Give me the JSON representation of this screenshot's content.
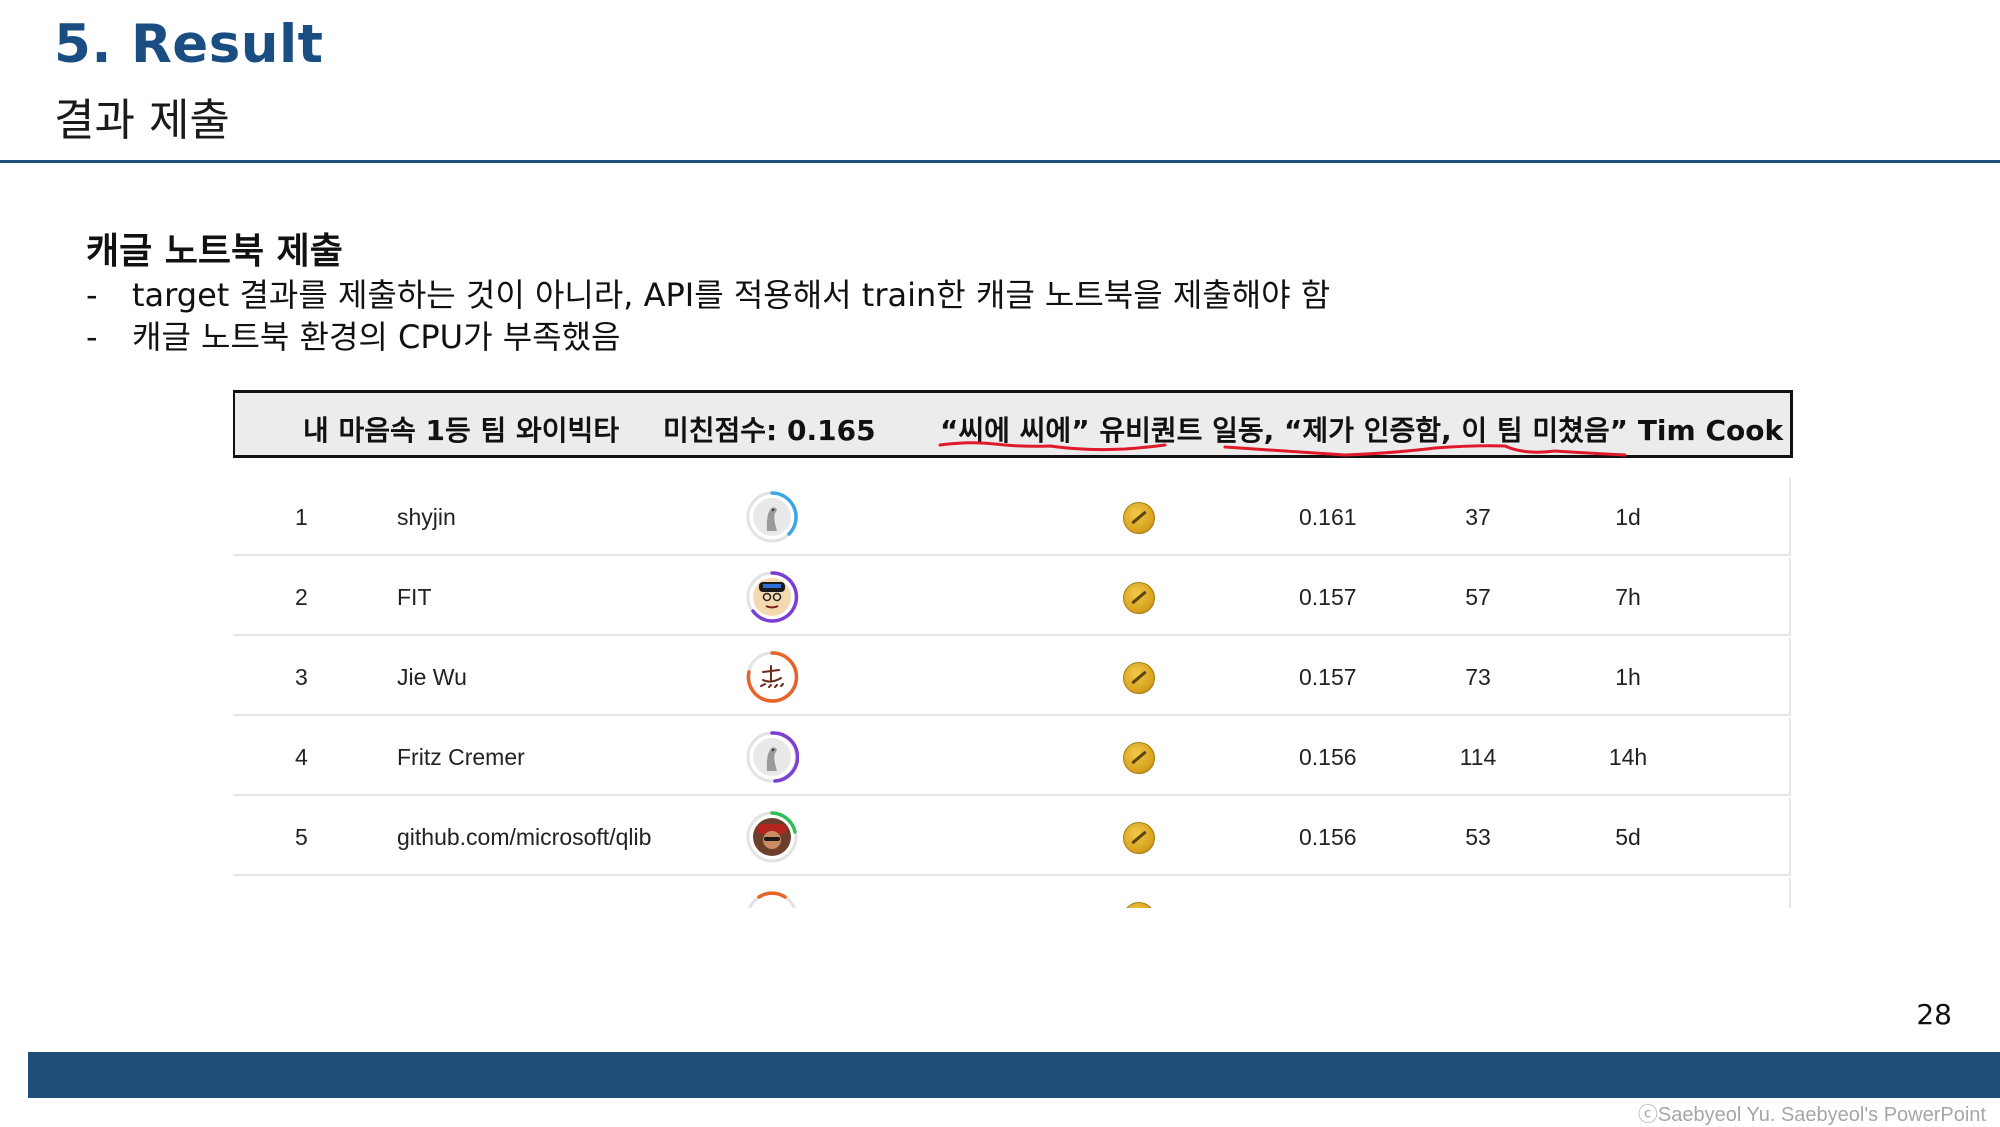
{
  "slide": {
    "title": "5. Result",
    "subtitle": "결과 제출",
    "section_heading": "캐글 노트북 제출",
    "bullets": [
      "target 결과를 제출하는 것이 아니라, API를 적용해서 train한 캐글 노트북을 제출해야 함",
      "캐글 노트북 환경의 CPU가 부족했음"
    ],
    "bullet_marker": "-",
    "page_number": "28",
    "copyright": "ⓒSaebyeol Yu. Saebyeol's PowerPoint"
  },
  "banner": {
    "team": "내 마음속 1등 팀 와이빅타",
    "score": "미친점수: 0.165",
    "quote": "“씨에 씨에” 유비퀀트 일동, “제가 인증함, 이 팀 미쳤음” Tim Cook",
    "underline_color": "#e0192b"
  },
  "leaderboard": {
    "rows": [
      {
        "rank": "1",
        "name": "shyjin",
        "score": "0.161",
        "entries": "37",
        "last": "1d",
        "ring_color": "#3aa7e0",
        "avatar": "duck-avatar-icon"
      },
      {
        "rank": "2",
        "name": "FIT",
        "score": "0.157",
        "entries": "57",
        "last": "7h",
        "ring_color": "#7b3fd6",
        "avatar": "cartoon-face-avatar-icon"
      },
      {
        "rank": "3",
        "name": "Jie Wu",
        "score": "0.157",
        "entries": "73",
        "last": "1h",
        "ring_color": "#e8632a",
        "avatar": "calligraphy-avatar-icon"
      },
      {
        "rank": "4",
        "name": "Fritz Cremer",
        "score": "0.156",
        "entries": "114",
        "last": "14h",
        "ring_color": "#7b3fd6",
        "avatar": "duck-avatar-icon"
      },
      {
        "rank": "5",
        "name": "github.com/microsoft/qlib",
        "score": "0.156",
        "entries": "53",
        "last": "5d",
        "ring_color": "#2fbf5a",
        "avatar": "photo-avatar-icon"
      }
    ],
    "medal_color": "#d9a520"
  },
  "colors": {
    "title": "#1a4e82",
    "header_rule": "#1f4e79",
    "footer_bar": "#1f4e79"
  }
}
